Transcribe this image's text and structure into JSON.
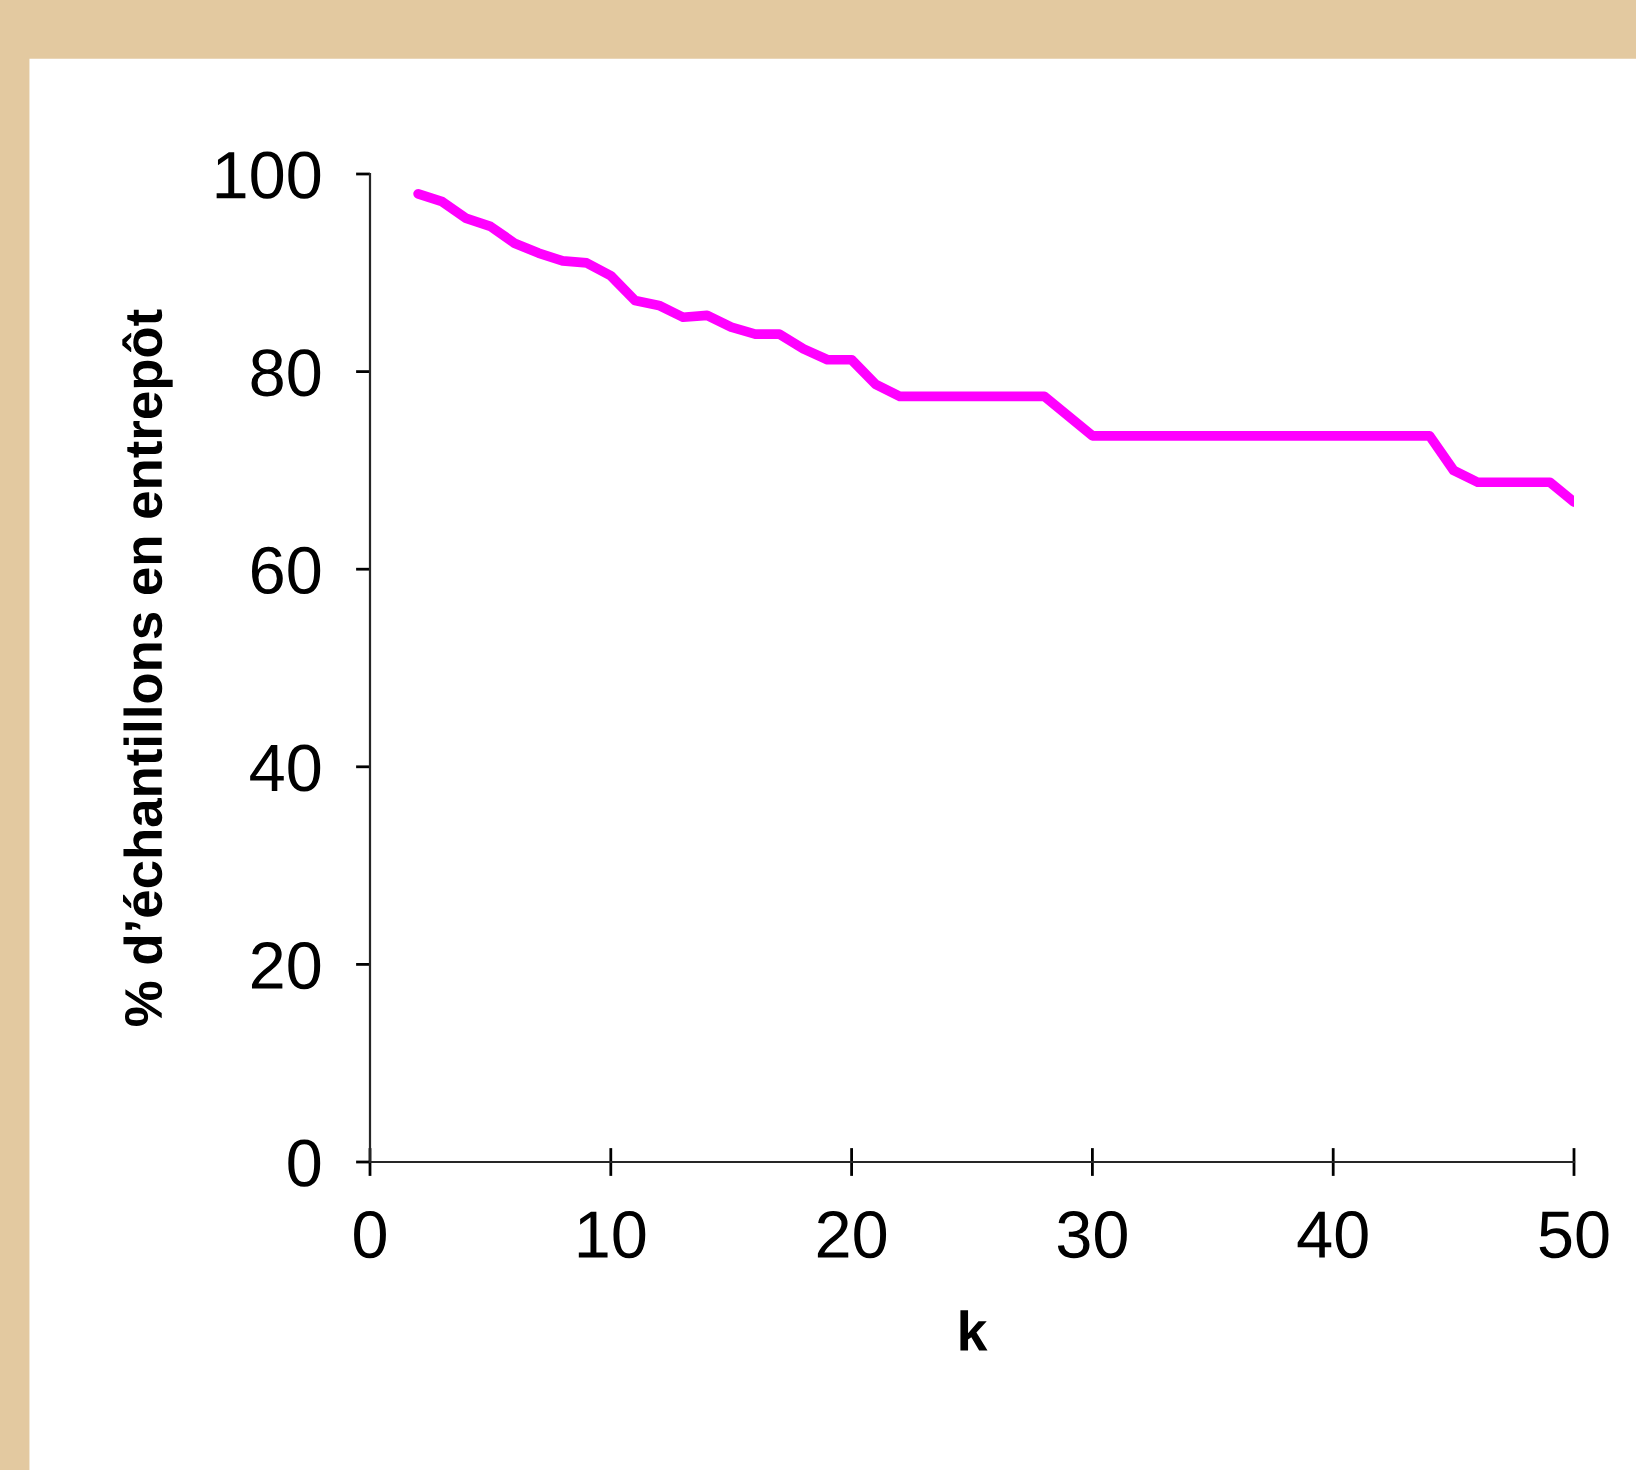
{
  "chart_data": {
    "type": "line",
    "xlabel": "k",
    "ylabel": "% d’échantillons en entrepôt",
    "x": [
      2,
      3,
      4,
      5,
      6,
      7,
      8,
      9,
      10,
      11,
      12,
      13,
      14,
      15,
      16,
      17,
      18,
      19,
      20,
      21,
      22,
      23,
      24,
      25,
      26,
      27,
      28,
      29,
      30,
      31,
      32,
      33,
      34,
      35,
      36,
      37,
      38,
      39,
      40,
      41,
      42,
      43,
      44,
      45,
      46,
      47,
      48,
      49,
      50
    ],
    "series": [
      {
        "color": "#ff00ff",
        "values": [
          98,
          97.2,
          95.5,
          94.7,
          93,
          92,
          91.2,
          91,
          89.7,
          87.2,
          86.7,
          85.5,
          85.7,
          84.5,
          83.8,
          83.8,
          82.3,
          81.2,
          81.2,
          78.7,
          77.5,
          77.5,
          77.5,
          77.5,
          77.5,
          77.5,
          77.5,
          75.5,
          73.5,
          73.5,
          73.5,
          73.5,
          73.5,
          73.5,
          73.5,
          73.5,
          73.5,
          73.5,
          73.5,
          73.5,
          73.5,
          73.5,
          73.5,
          70,
          68.8,
          68.8,
          68.8,
          68.8,
          66.8
        ]
      }
    ],
    "xlim": [
      0,
      50
    ],
    "xticks": [
      0,
      10,
      20,
      30,
      40,
      50
    ],
    "ylim": [
      0,
      100
    ],
    "yticks": [
      0,
      20,
      40,
      60,
      80,
      100
    ],
    "grid": false,
    "marker": "none",
    "line_style": "solid"
  }
}
